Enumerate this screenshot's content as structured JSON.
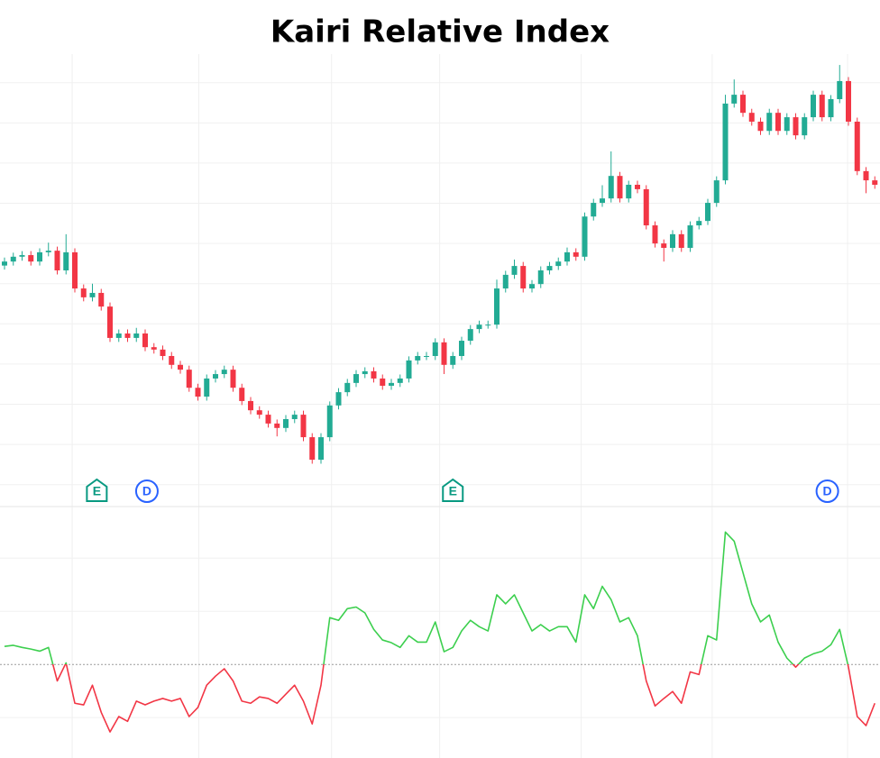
{
  "chart_data": [
    {
      "type": "candlestick",
      "title": "Kairi Relative Index",
      "open": [
        59.5,
        60.5,
        61.7,
        62.1,
        60.5,
        62.8,
        63.2,
        58.3,
        62.8,
        53.8,
        51.6,
        52.7,
        49.3,
        41.5,
        42.6,
        41.5,
        42.6,
        39.2,
        38.6,
        37.0,
        34.8,
        33.6,
        29.1,
        26.9,
        31.4,
        32.5,
        33.6,
        29.1,
        25.8,
        23.5,
        22.4,
        20.2,
        19.1,
        21.3,
        22.4,
        16.8,
        11.2,
        16.8,
        24.7,
        28.0,
        30.3,
        32.5,
        33.2,
        31.4,
        29.6,
        30.3,
        31.4,
        35.9,
        37.0,
        37.0,
        40.4,
        34.8,
        37.0,
        40.8,
        43.7,
        44.8,
        44.8,
        53.8,
        57.2,
        59.4,
        53.8,
        54.9,
        58.3,
        59.4,
        60.5,
        62.8,
        61.7,
        71.7,
        75.1,
        76.2,
        81.8,
        76.2,
        79.6,
        78.5,
        69.5,
        65.0,
        63.9,
        67.3,
        63.9,
        69.5,
        70.6,
        75.1,
        80.7,
        99.8,
        102.0,
        97.5,
        95.3,
        93.0,
        97.5,
        93.0,
        96.4,
        91.9,
        96.4,
        102.0,
        96.4,
        100.9,
        105.4,
        95.3,
        83.0,
        80.7
      ],
      "high": [
        61.5,
        62.7,
        63.1,
        63.1,
        63.8,
        65.2,
        64.2,
        67.3,
        63.8,
        54.8,
        55.0,
        53.7,
        50.3,
        43.6,
        43.6,
        44.0,
        43.6,
        40.2,
        39.6,
        38.0,
        35.8,
        34.6,
        30.1,
        32.4,
        33.5,
        34.6,
        34.6,
        30.1,
        26.8,
        24.5,
        23.4,
        21.2,
        22.3,
        23.4,
        23.4,
        17.8,
        17.8,
        25.7,
        29.0,
        31.3,
        33.5,
        34.2,
        34.2,
        32.4,
        31.3,
        32.4,
        36.9,
        38.0,
        38.0,
        41.4,
        41.4,
        38.0,
        41.8,
        44.7,
        45.8,
        45.8,
        56.0,
        58.2,
        61.0,
        60.4,
        55.9,
        59.3,
        60.4,
        61.5,
        64.0,
        63.8,
        72.7,
        76.1,
        79.5,
        87.9,
        82.8,
        80.6,
        80.6,
        79.5,
        70.5,
        66.0,
        68.3,
        68.3,
        70.5,
        71.6,
        76.1,
        81.7,
        102.0,
        105.8,
        103.0,
        98.5,
        96.3,
        98.5,
        98.5,
        97.4,
        97.4,
        97.4,
        103.0,
        103.0,
        101.9,
        109.4,
        106.4,
        96.3,
        84.0,
        81.7
      ],
      "low": [
        58.5,
        59.5,
        60.7,
        59.5,
        59.5,
        61.8,
        57.3,
        57.3,
        52.8,
        50.6,
        50.6,
        48.3,
        40.5,
        40.5,
        40.5,
        40.5,
        38.2,
        37.6,
        36.0,
        33.8,
        32.6,
        28.1,
        25.9,
        25.9,
        30.4,
        31.5,
        28.1,
        24.8,
        22.5,
        21.4,
        19.2,
        17.0,
        18.1,
        20.3,
        15.8,
        10.2,
        10.2,
        15.8,
        23.7,
        27.0,
        29.3,
        31.5,
        30.4,
        28.6,
        28.6,
        29.3,
        30.4,
        34.9,
        36.0,
        36.0,
        32.5,
        33.8,
        36.0,
        39.8,
        42.7,
        43.8,
        43.8,
        52.8,
        56.2,
        52.8,
        52.8,
        53.9,
        57.3,
        58.4,
        59.5,
        60.7,
        60.7,
        70.7,
        74.1,
        75.2,
        75.2,
        75.2,
        77.5,
        68.5,
        64.0,
        60.5,
        62.9,
        62.9,
        62.9,
        68.5,
        69.6,
        74.1,
        79.7,
        98.8,
        96.5,
        94.3,
        92.0,
        92.0,
        92.0,
        92.0,
        90.9,
        90.9,
        95.4,
        95.4,
        95.4,
        99.9,
        94.3,
        82.0,
        77.5,
        78.6
      ],
      "close": [
        60.5,
        61.7,
        62.1,
        60.5,
        62.8,
        63.2,
        58.3,
        62.8,
        53.8,
        51.6,
        52.7,
        49.3,
        41.5,
        42.6,
        41.5,
        42.6,
        39.2,
        38.6,
        37.0,
        34.8,
        33.6,
        29.1,
        26.9,
        31.4,
        32.5,
        33.6,
        29.1,
        25.8,
        23.5,
        22.4,
        20.2,
        19.1,
        21.3,
        22.4,
        16.8,
        11.2,
        16.8,
        24.7,
        28.0,
        30.3,
        32.5,
        33.2,
        31.4,
        29.6,
        30.3,
        31.4,
        35.9,
        37.0,
        37.0,
        40.4,
        34.8,
        37.0,
        40.8,
        43.7,
        44.8,
        44.8,
        53.8,
        57.2,
        59.4,
        53.8,
        54.9,
        58.3,
        59.4,
        60.5,
        62.8,
        61.7,
        71.7,
        75.1,
        76.2,
        81.8,
        76.2,
        79.6,
        78.5,
        69.5,
        65.0,
        63.9,
        67.3,
        63.9,
        69.5,
        70.6,
        75.1,
        80.7,
        99.8,
        102.0,
        97.5,
        95.3,
        93.0,
        97.5,
        93.0,
        96.4,
        91.9,
        96.4,
        102.0,
        96.4,
        100.9,
        105.4,
        95.3,
        83.0,
        80.7,
        79.6
      ],
      "up_color": "#22ab94",
      "down_color": "#f23645",
      "ylim": [
        0,
        112
      ],
      "yticks": [
        5,
        15,
        25,
        35,
        45,
        55,
        65,
        75,
        85,
        95,
        105
      ],
      "grid": true,
      "xgrid": [
        7.7,
        22.1,
        37.2,
        49.5,
        65.6,
        80.5,
        95.9
      ],
      "events": [
        {
          "label": "E",
          "x": 10.5,
          "color": "#089981"
        },
        {
          "label": "D",
          "x": 16.2,
          "color": "#2962ff"
        },
        {
          "label": "E",
          "x": 51.0,
          "color": "#089981"
        },
        {
          "label": "D",
          "x": 93.6,
          "color": "#2962ff"
        }
      ]
    },
    {
      "type": "line",
      "series": [
        {
          "values": [
            0.34,
            0.36,
            0.32,
            0.29,
            0.25,
            0.32,
            -0.31,
            0.03,
            -0.73,
            -0.76,
            -0.39,
            -0.9,
            -1.27,
            -0.98,
            -1.07,
            -0.69,
            -0.76,
            -0.69,
            -0.64,
            -0.69,
            -0.64,
            -0.98,
            -0.81,
            -0.39,
            -0.22,
            -0.08,
            -0.31,
            -0.69,
            -0.73,
            -0.61,
            -0.64,
            -0.73,
            -0.56,
            -0.39,
            -0.69,
            -1.12,
            -0.39,
            0.88,
            0.83,
            1.05,
            1.08,
            0.97,
            0.66,
            0.46,
            0.41,
            0.32,
            0.54,
            0.42,
            0.42,
            0.8,
            0.24,
            0.32,
            0.63,
            0.83,
            0.71,
            0.63,
            1.31,
            1.14,
            1.31,
            0.97,
            0.63,
            0.75,
            0.63,
            0.71,
            0.71,
            0.42,
            1.31,
            1.05,
            1.47,
            1.22,
            0.8,
            0.88,
            0.54,
            -0.31,
            -0.78,
            -0.64,
            -0.51,
            -0.73,
            -0.14,
            -0.19,
            0.54,
            0.46,
            2.49,
            2.32,
            1.73,
            1.14,
            0.8,
            0.93,
            0.42,
            0.12,
            -0.05,
            0.12,
            0.2,
            0.25,
            0.37,
            0.66,
            -0.05,
            -0.98,
            -1.15,
            -0.73
          ],
          "color_above": "#3ccf4e",
          "color_below": "#f23645"
        }
      ],
      "ylim": [
        -1.76,
        2.92
      ],
      "yticks": [
        -1,
        1,
        2
      ],
      "grid": true,
      "baseline": 0
    }
  ]
}
